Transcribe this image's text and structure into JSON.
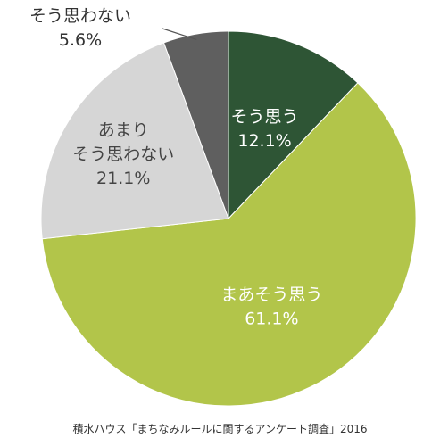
{
  "chart_data": {
    "type": "pie",
    "start_angle_deg": 0,
    "direction": "clockwise",
    "slices": [
      {
        "label_lines": [
          "そう思う"
        ],
        "value": 12.1,
        "value_text": "12.1%",
        "color": "#2e5535",
        "text_color": "#ffffff"
      },
      {
        "label_lines": [
          "まあそう思う"
        ],
        "value": 61.1,
        "value_text": "61.1%",
        "color": "#b2c54a",
        "text_color": "#ffffff"
      },
      {
        "label_lines": [
          "あまり",
          "そう思わない"
        ],
        "value": 21.1,
        "value_text": "21.1%",
        "color": "#d6d6d6",
        "text_color": "#444444"
      },
      {
        "label_lines": [
          "そう思わない"
        ],
        "value": 5.6,
        "value_text": "5.6%",
        "color": "#5f5f5f",
        "text_color": "#333333",
        "outside": true
      }
    ]
  },
  "source": "積水ハウス「まちなみルールに関するアンケート調査」2016"
}
